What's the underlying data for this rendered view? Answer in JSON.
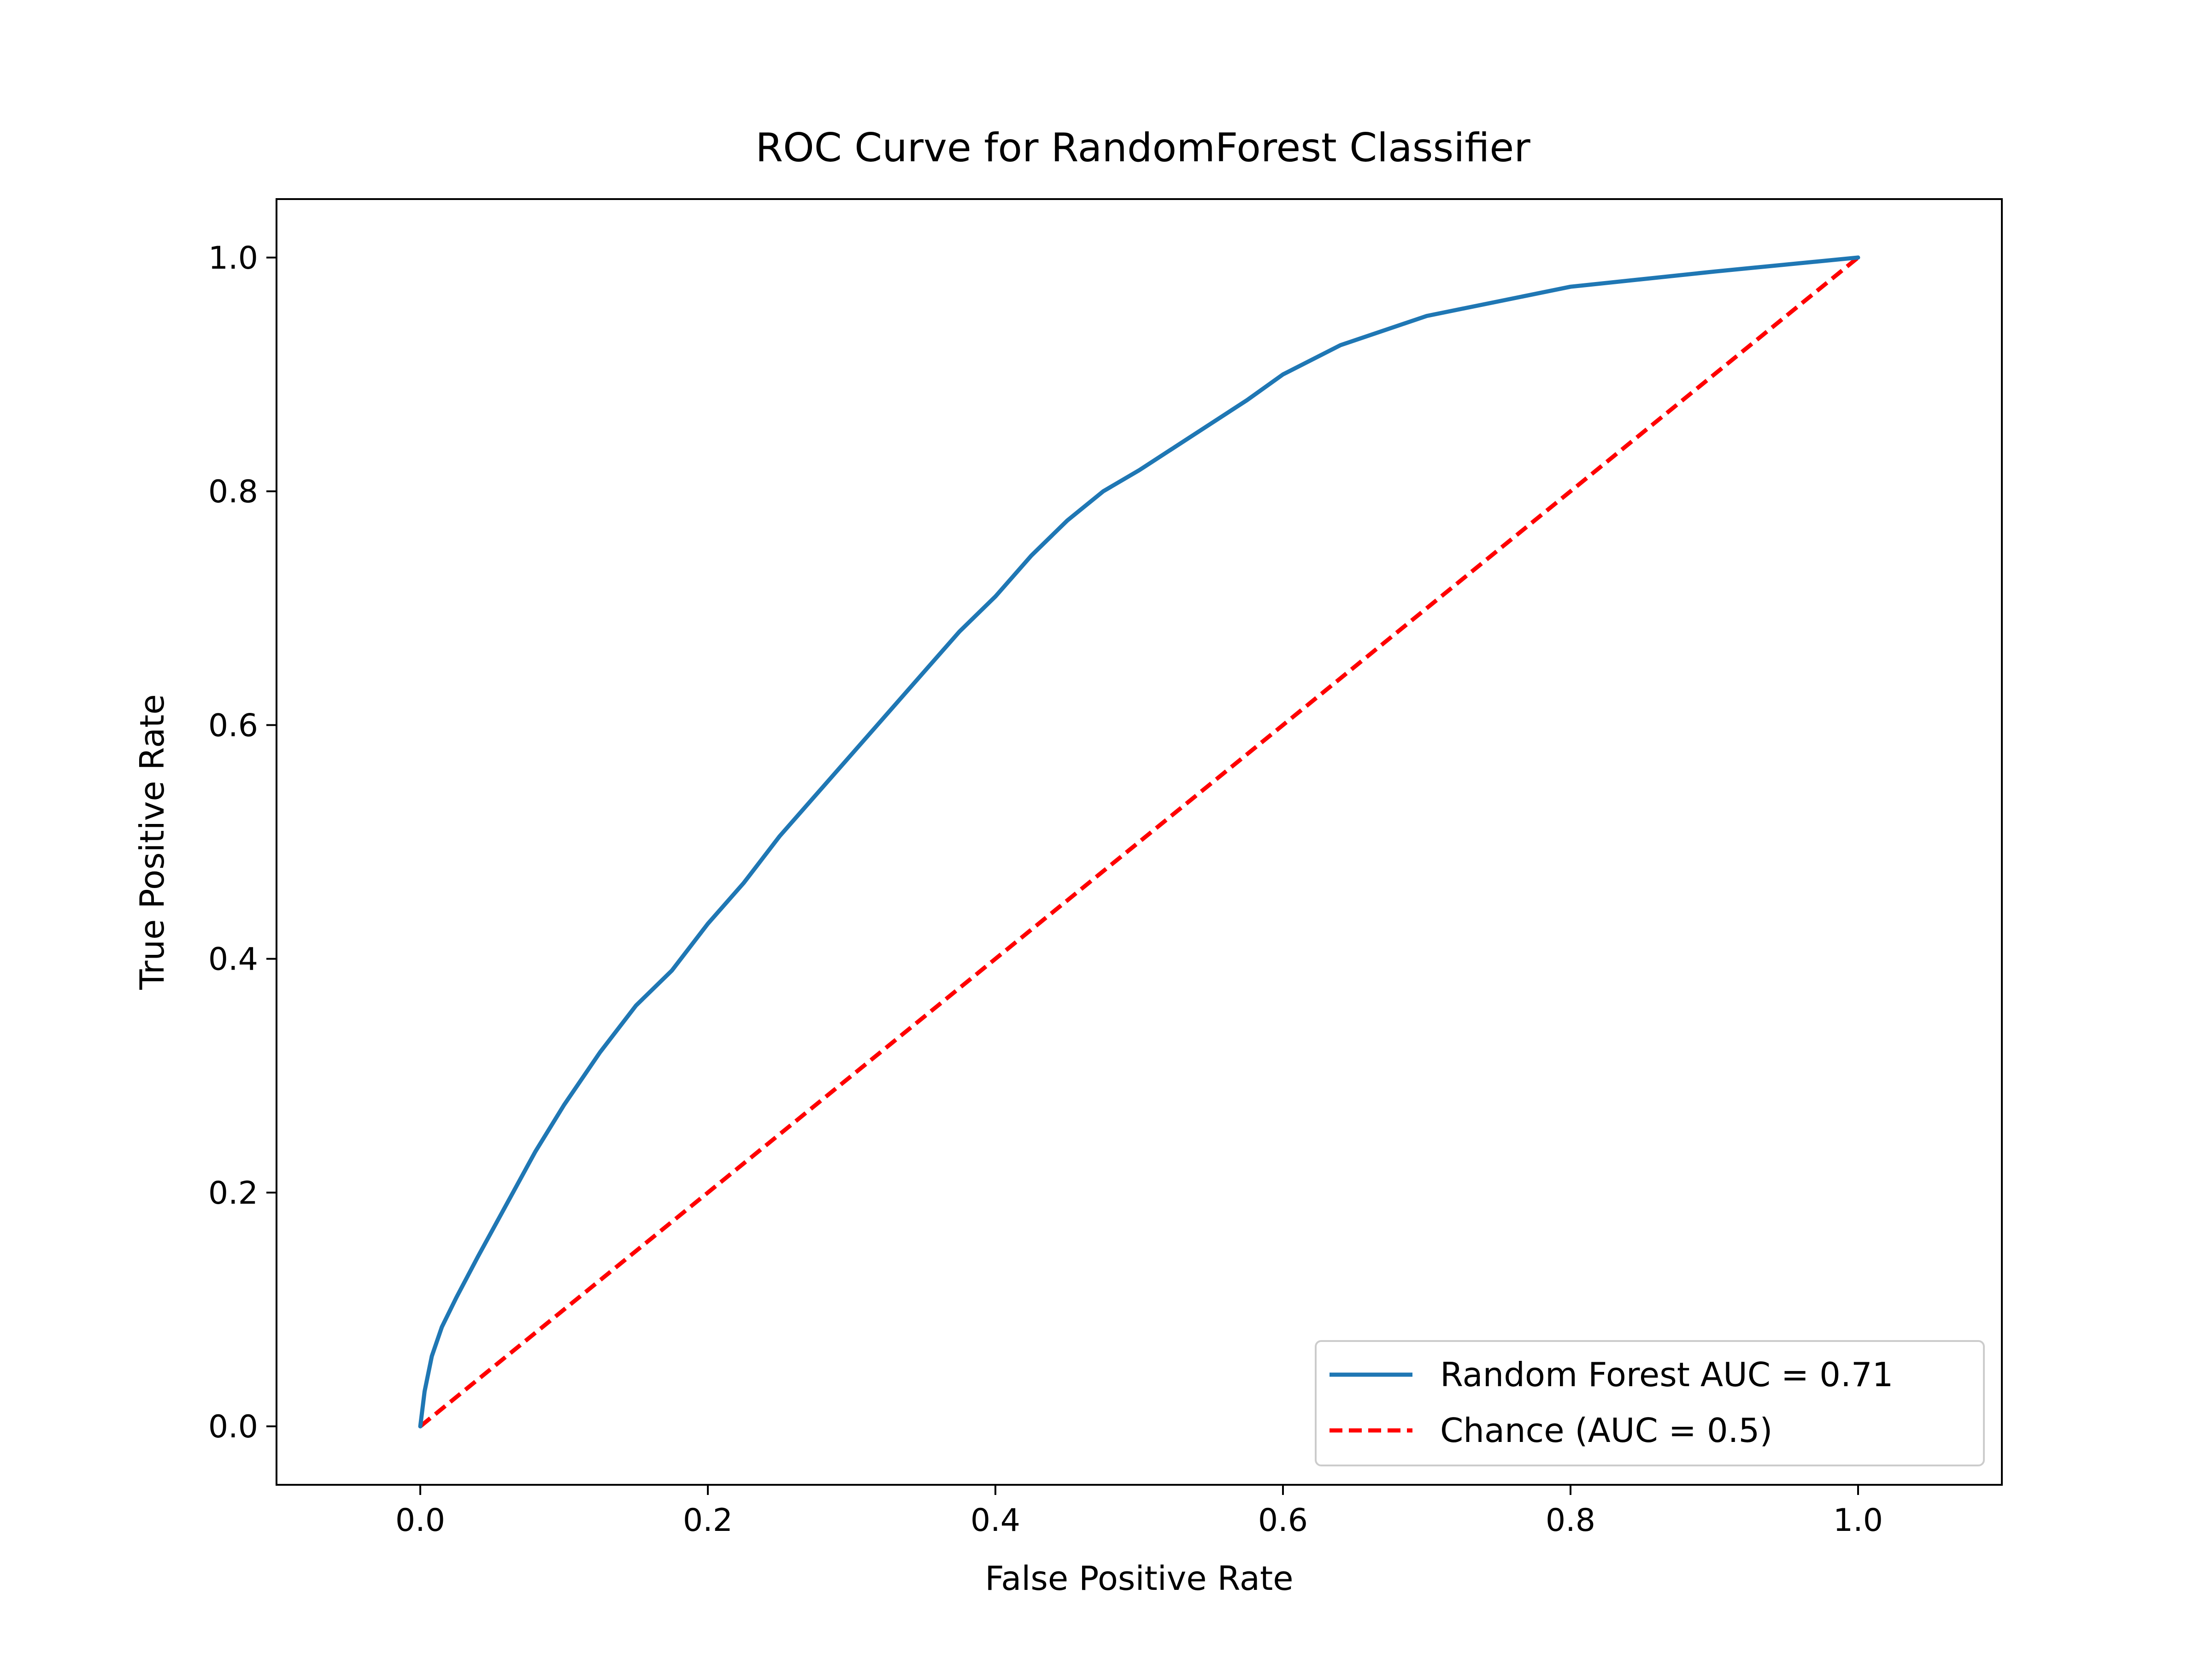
{
  "chart_data": {
    "type": "line",
    "title": "ROC Curve for RandomForest Classifier",
    "xlabel": "False Positive Rate",
    "ylabel": "True Positive Rate",
    "xlim": [
      -0.1,
      1.1
    ],
    "ylim": [
      -0.05,
      1.05
    ],
    "xticks": [
      0.0,
      0.2,
      0.4,
      0.6,
      0.8,
      1.0
    ],
    "yticks": [
      0.0,
      0.2,
      0.4,
      0.6,
      0.8,
      1.0
    ],
    "xtick_labels": [
      "0.0",
      "0.2",
      "0.4",
      "0.6",
      "0.8",
      "1.0"
    ],
    "ytick_labels": [
      "0.0",
      "0.2",
      "0.4",
      "0.6",
      "0.8",
      "1.0"
    ],
    "grid": false,
    "legend_position": "lower-right",
    "series": [
      {
        "name": "Random Forest AUC = 0.71",
        "color": "#1f77b4",
        "style": "solid",
        "x": [
          0.0,
          0.003,
          0.008,
          0.015,
          0.025,
          0.04,
          0.06,
          0.08,
          0.1,
          0.125,
          0.15,
          0.175,
          0.2,
          0.225,
          0.25,
          0.275,
          0.3,
          0.325,
          0.35,
          0.375,
          0.4,
          0.425,
          0.45,
          0.475,
          0.5,
          0.525,
          0.55,
          0.575,
          0.6,
          0.64,
          0.7,
          0.8,
          0.9,
          1.0
        ],
        "y": [
          0.0,
          0.03,
          0.06,
          0.085,
          0.11,
          0.145,
          0.19,
          0.235,
          0.275,
          0.32,
          0.36,
          0.39,
          0.43,
          0.465,
          0.505,
          0.54,
          0.575,
          0.61,
          0.645,
          0.68,
          0.71,
          0.745,
          0.775,
          0.8,
          0.818,
          0.838,
          0.858,
          0.878,
          0.9,
          0.925,
          0.95,
          0.975,
          0.988,
          1.0
        ]
      },
      {
        "name": "Chance (AUC = 0.5)",
        "color": "#ff0000",
        "style": "dashed",
        "x": [
          0.0,
          1.0
        ],
        "y": [
          0.0,
          1.0
        ]
      }
    ]
  }
}
